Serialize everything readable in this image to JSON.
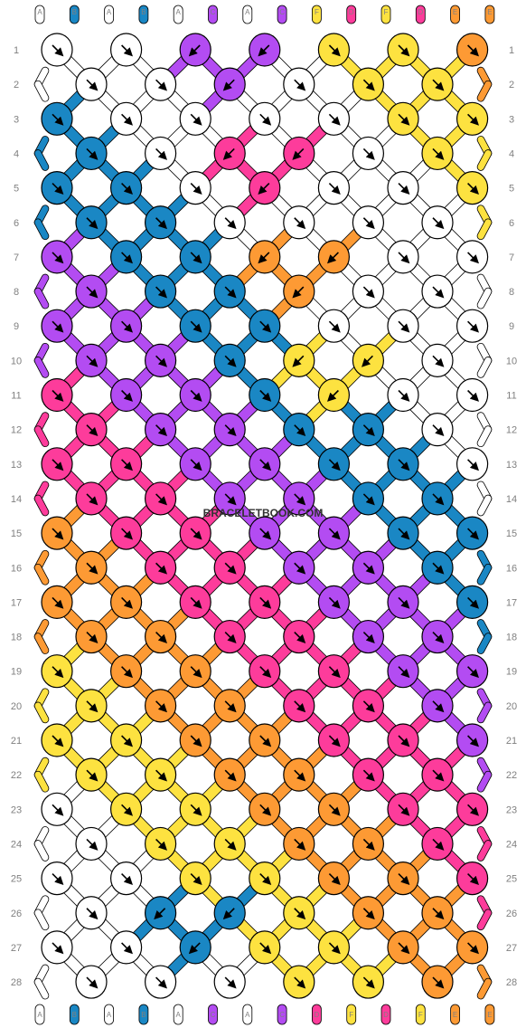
{
  "site": {
    "watermark": "BRACELETBOOK.COM"
  },
  "colors": {
    "A": "#ffffff",
    "B": "#1a87c4",
    "C": "#b34cf2",
    "D": "#fd3c9b",
    "E": "#fd9a34",
    "F": "#fde240"
  },
  "strings": {
    "top": [
      "A",
      "B",
      "A",
      "B",
      "A",
      "C",
      "A",
      "C",
      "F",
      "D",
      "F",
      "D",
      "E",
      "E"
    ],
    "bottom": [
      "A",
      "B",
      "A",
      "B",
      "A",
      "C",
      "A",
      "C",
      "D",
      "F",
      "D",
      "F",
      "E",
      "E"
    ]
  },
  "rows": [
    {
      "label": "1",
      "knots": [
        {
          "c": "A",
          "d": "f"
        },
        {
          "c": "A",
          "d": "f"
        },
        {
          "c": "C",
          "d": "b"
        },
        {
          "c": "C",
          "d": "b"
        },
        {
          "c": "F",
          "d": "f"
        },
        {
          "c": "F",
          "d": "f"
        },
        {
          "c": "E",
          "d": "f"
        }
      ]
    },
    {
      "label": "2",
      "knots": [
        {
          "c": "A",
          "d": "f"
        },
        {
          "c": "A",
          "d": "f"
        },
        {
          "c": "C",
          "d": "b"
        },
        {
          "c": "A",
          "d": "f"
        },
        {
          "c": "F",
          "d": "f"
        },
        {
          "c": "F",
          "d": "f"
        }
      ]
    },
    {
      "label": "3",
      "knots": [
        {
          "c": "B",
          "d": "f"
        },
        {
          "c": "A",
          "d": "f"
        },
        {
          "c": "A",
          "d": "f"
        },
        {
          "c": "A",
          "d": "f"
        },
        {
          "c": "A",
          "d": "f"
        },
        {
          "c": "F",
          "d": "f"
        },
        {
          "c": "F",
          "d": "f"
        }
      ]
    },
    {
      "label": "4",
      "knots": [
        {
          "c": "B",
          "d": "f"
        },
        {
          "c": "A",
          "d": "f"
        },
        {
          "c": "D",
          "d": "b"
        },
        {
          "c": "D",
          "d": "b"
        },
        {
          "c": "A",
          "d": "f"
        },
        {
          "c": "F",
          "d": "f"
        }
      ]
    },
    {
      "label": "5",
      "knots": [
        {
          "c": "B",
          "d": "f"
        },
        {
          "c": "B",
          "d": "f"
        },
        {
          "c": "A",
          "d": "f"
        },
        {
          "c": "D",
          "d": "b"
        },
        {
          "c": "A",
          "d": "f"
        },
        {
          "c": "A",
          "d": "f"
        },
        {
          "c": "F",
          "d": "f"
        }
      ]
    },
    {
      "label": "6",
      "knots": [
        {
          "c": "B",
          "d": "f"
        },
        {
          "c": "B",
          "d": "f"
        },
        {
          "c": "A",
          "d": "f"
        },
        {
          "c": "A",
          "d": "f"
        },
        {
          "c": "A",
          "d": "f"
        },
        {
          "c": "A",
          "d": "f"
        }
      ]
    },
    {
      "label": "7",
      "knots": [
        {
          "c": "C",
          "d": "f"
        },
        {
          "c": "B",
          "d": "f"
        },
        {
          "c": "B",
          "d": "f"
        },
        {
          "c": "E",
          "d": "b"
        },
        {
          "c": "E",
          "d": "b"
        },
        {
          "c": "A",
          "d": "f"
        },
        {
          "c": "A",
          "d": "f"
        }
      ]
    },
    {
      "label": "8",
      "knots": [
        {
          "c": "C",
          "d": "f"
        },
        {
          "c": "B",
          "d": "f"
        },
        {
          "c": "B",
          "d": "f"
        },
        {
          "c": "E",
          "d": "b"
        },
        {
          "c": "A",
          "d": "f"
        },
        {
          "c": "A",
          "d": "f"
        }
      ]
    },
    {
      "label": "9",
      "knots": [
        {
          "c": "C",
          "d": "f"
        },
        {
          "c": "C",
          "d": "f"
        },
        {
          "c": "B",
          "d": "f"
        },
        {
          "c": "B",
          "d": "f"
        },
        {
          "c": "A",
          "d": "f"
        },
        {
          "c": "A",
          "d": "f"
        },
        {
          "c": "A",
          "d": "f"
        }
      ]
    },
    {
      "label": "10",
      "knots": [
        {
          "c": "C",
          "d": "f"
        },
        {
          "c": "C",
          "d": "f"
        },
        {
          "c": "B",
          "d": "f"
        },
        {
          "c": "F",
          "d": "b"
        },
        {
          "c": "F",
          "d": "b"
        },
        {
          "c": "A",
          "d": "f"
        }
      ]
    },
    {
      "label": "11",
      "knots": [
        {
          "c": "D",
          "d": "f"
        },
        {
          "c": "C",
          "d": "f"
        },
        {
          "c": "C",
          "d": "f"
        },
        {
          "c": "B",
          "d": "f"
        },
        {
          "c": "F",
          "d": "b"
        },
        {
          "c": "A",
          "d": "f"
        },
        {
          "c": "A",
          "d": "f"
        }
      ]
    },
    {
      "label": "12",
      "knots": [
        {
          "c": "D",
          "d": "f"
        },
        {
          "c": "C",
          "d": "f"
        },
        {
          "c": "C",
          "d": "f"
        },
        {
          "c": "B",
          "d": "f"
        },
        {
          "c": "B",
          "d": "f"
        },
        {
          "c": "A",
          "d": "f"
        }
      ]
    },
    {
      "label": "13",
      "knots": [
        {
          "c": "D",
          "d": "f"
        },
        {
          "c": "D",
          "d": "f"
        },
        {
          "c": "C",
          "d": "f"
        },
        {
          "c": "C",
          "d": "f"
        },
        {
          "c": "B",
          "d": "f"
        },
        {
          "c": "B",
          "d": "f"
        },
        {
          "c": "A",
          "d": "f"
        }
      ]
    },
    {
      "label": "14",
      "knots": [
        {
          "c": "D",
          "d": "f"
        },
        {
          "c": "D",
          "d": "f"
        },
        {
          "c": "C",
          "d": "f"
        },
        {
          "c": "C",
          "d": "f"
        },
        {
          "c": "B",
          "d": "f"
        },
        {
          "c": "B",
          "d": "f"
        }
      ]
    },
    {
      "label": "15",
      "knots": [
        {
          "c": "E",
          "d": "f"
        },
        {
          "c": "D",
          "d": "f"
        },
        {
          "c": "D",
          "d": "f"
        },
        {
          "c": "C",
          "d": "f"
        },
        {
          "c": "C",
          "d": "f"
        },
        {
          "c": "B",
          "d": "f"
        },
        {
          "c": "B",
          "d": "f"
        }
      ]
    },
    {
      "label": "16",
      "knots": [
        {
          "c": "E",
          "d": "f"
        },
        {
          "c": "D",
          "d": "f"
        },
        {
          "c": "D",
          "d": "f"
        },
        {
          "c": "C",
          "d": "f"
        },
        {
          "c": "C",
          "d": "f"
        },
        {
          "c": "B",
          "d": "f"
        }
      ]
    },
    {
      "label": "17",
      "knots": [
        {
          "c": "E",
          "d": "f"
        },
        {
          "c": "E",
          "d": "f"
        },
        {
          "c": "D",
          "d": "f"
        },
        {
          "c": "D",
          "d": "f"
        },
        {
          "c": "C",
          "d": "f"
        },
        {
          "c": "C",
          "d": "f"
        },
        {
          "c": "B",
          "d": "f"
        }
      ]
    },
    {
      "label": "18",
      "knots": [
        {
          "c": "E",
          "d": "f"
        },
        {
          "c": "E",
          "d": "f"
        },
        {
          "c": "D",
          "d": "f"
        },
        {
          "c": "D",
          "d": "f"
        },
        {
          "c": "C",
          "d": "f"
        },
        {
          "c": "C",
          "d": "f"
        }
      ]
    },
    {
      "label": "19",
      "knots": [
        {
          "c": "F",
          "d": "f"
        },
        {
          "c": "E",
          "d": "f"
        },
        {
          "c": "E",
          "d": "f"
        },
        {
          "c": "D",
          "d": "f"
        },
        {
          "c": "D",
          "d": "f"
        },
        {
          "c": "C",
          "d": "f"
        },
        {
          "c": "C",
          "d": "f"
        }
      ]
    },
    {
      "label": "20",
      "knots": [
        {
          "c": "F",
          "d": "f"
        },
        {
          "c": "E",
          "d": "f"
        },
        {
          "c": "E",
          "d": "f"
        },
        {
          "c": "D",
          "d": "f"
        },
        {
          "c": "D",
          "d": "f"
        },
        {
          "c": "C",
          "d": "f"
        }
      ]
    },
    {
      "label": "21",
      "knots": [
        {
          "c": "F",
          "d": "f"
        },
        {
          "c": "F",
          "d": "f"
        },
        {
          "c": "E",
          "d": "f"
        },
        {
          "c": "E",
          "d": "f"
        },
        {
          "c": "D",
          "d": "f"
        },
        {
          "c": "D",
          "d": "f"
        },
        {
          "c": "C",
          "d": "f"
        }
      ]
    },
    {
      "label": "22",
      "knots": [
        {
          "c": "F",
          "d": "f"
        },
        {
          "c": "F",
          "d": "f"
        },
        {
          "c": "E",
          "d": "f"
        },
        {
          "c": "E",
          "d": "f"
        },
        {
          "c": "D",
          "d": "f"
        },
        {
          "c": "D",
          "d": "f"
        }
      ]
    },
    {
      "label": "23",
      "knots": [
        {
          "c": "A",
          "d": "f"
        },
        {
          "c": "F",
          "d": "f"
        },
        {
          "c": "F",
          "d": "f"
        },
        {
          "c": "E",
          "d": "f"
        },
        {
          "c": "E",
          "d": "f"
        },
        {
          "c": "D",
          "d": "f"
        },
        {
          "c": "D",
          "d": "f"
        }
      ]
    },
    {
      "label": "24",
      "knots": [
        {
          "c": "A",
          "d": "f"
        },
        {
          "c": "F",
          "d": "f"
        },
        {
          "c": "F",
          "d": "f"
        },
        {
          "c": "E",
          "d": "f"
        },
        {
          "c": "E",
          "d": "f"
        },
        {
          "c": "D",
          "d": "f"
        }
      ]
    },
    {
      "label": "25",
      "knots": [
        {
          "c": "A",
          "d": "f"
        },
        {
          "c": "A",
          "d": "f"
        },
        {
          "c": "F",
          "d": "f"
        },
        {
          "c": "F",
          "d": "f"
        },
        {
          "c": "E",
          "d": "f"
        },
        {
          "c": "E",
          "d": "f"
        },
        {
          "c": "D",
          "d": "f"
        }
      ]
    },
    {
      "label": "26",
      "knots": [
        {
          "c": "A",
          "d": "f"
        },
        {
          "c": "B",
          "d": "b"
        },
        {
          "c": "B",
          "d": "b"
        },
        {
          "c": "F",
          "d": "f"
        },
        {
          "c": "E",
          "d": "f"
        },
        {
          "c": "E",
          "d": "f"
        }
      ]
    },
    {
      "label": "27",
      "knots": [
        {
          "c": "A",
          "d": "f"
        },
        {
          "c": "A",
          "d": "f"
        },
        {
          "c": "B",
          "d": "b"
        },
        {
          "c": "F",
          "d": "f"
        },
        {
          "c": "F",
          "d": "f"
        },
        {
          "c": "E",
          "d": "f"
        },
        {
          "c": "E",
          "d": "f"
        }
      ]
    },
    {
      "label": "28",
      "knots": [
        {
          "c": "A",
          "d": "f"
        },
        {
          "c": "A",
          "d": "f"
        },
        {
          "c": "A",
          "d": "f"
        },
        {
          "c": "F",
          "d": "f"
        },
        {
          "c": "F",
          "d": "f"
        },
        {
          "c": "E",
          "d": "f"
        }
      ]
    }
  ]
}
